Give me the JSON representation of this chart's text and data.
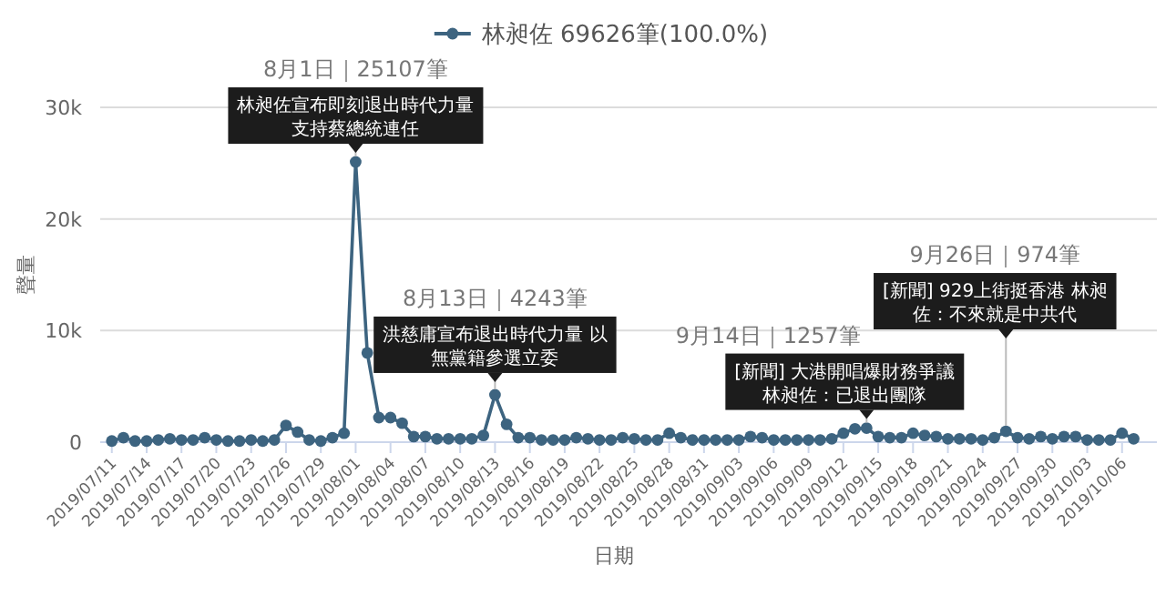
{
  "chart_data": {
    "type": "line",
    "xlabel": "日期",
    "ylabel": "聲量",
    "legend": "top",
    "grid": "y",
    "marker": "circle",
    "line_style": "solid",
    "xlim": [
      "2019-07-10",
      "2019-10-09"
    ],
    "ylim": [
      0,
      30000
    ],
    "yticks": [
      0,
      {
        "value": 10000,
        "label": "10k"
      },
      {
        "value": 20000,
        "label": "20k"
      },
      {
        "value": 30000,
        "label": "30k"
      }
    ],
    "xticks": [
      {
        "value": "2019-07-11",
        "label": "2019/07/11"
      },
      {
        "value": "2019-07-14",
        "label": "2019/07/14"
      },
      {
        "value": "2019-07-17",
        "label": "2019/07/17"
      },
      {
        "value": "2019-07-20",
        "label": "2019/07/20"
      },
      {
        "value": "2019-07-23",
        "label": "2019/07/23"
      },
      {
        "value": "2019-07-26",
        "label": "2019/07/26"
      },
      {
        "value": "2019-07-29",
        "label": "2019/07/29"
      },
      {
        "value": "2019-08-01",
        "label": "2019/08/01"
      },
      {
        "value": "2019-08-04",
        "label": "2019/08/04"
      },
      {
        "value": "2019-08-07",
        "label": "2019/08/07"
      },
      {
        "value": "2019-08-10",
        "label": "2019/08/10"
      },
      {
        "value": "2019-08-13",
        "label": "2019/08/13"
      },
      {
        "value": "2019-08-16",
        "label": "2019/08/16"
      },
      {
        "value": "2019-08-19",
        "label": "2019/08/19"
      },
      {
        "value": "2019-08-22",
        "label": "2019/08/22"
      },
      {
        "value": "2019-08-25",
        "label": "2019/08/25"
      },
      {
        "value": "2019-08-28",
        "label": "2019/08/28"
      },
      {
        "value": "2019-08-31",
        "label": "2019/08/31"
      },
      {
        "value": "2019-09-03",
        "label": "2019/09/03"
      },
      {
        "value": "2019-09-06",
        "label": "2019/09/06"
      },
      {
        "value": "2019-09-09",
        "label": "2019/09/09"
      },
      {
        "value": "2019-09-12",
        "label": "2019/09/12"
      },
      {
        "value": "2019-09-15",
        "label": "2019/09/15"
      },
      {
        "value": "2019-09-18",
        "label": "2019/09/18"
      },
      {
        "value": "2019-09-21",
        "label": "2019/09/21"
      },
      {
        "value": "2019-09-24",
        "label": "2019/09/24"
      },
      {
        "value": "2019-09-27",
        "label": "2019/09/27"
      },
      {
        "value": "2019-09-30",
        "label": "2019/09/30"
      },
      {
        "value": "2019-10-03",
        "label": "2019/10/03"
      },
      {
        "value": "2019-10-06",
        "label": "2019/10/06"
      }
    ],
    "annotations": [
      "8月1日｜25107筆",
      {
        "text": "林昶佐宣布即刻退出時代力量支持蔡總統連任",
        "x": "2019-08-01",
        "y": 25107
      },
      "8月13日｜4243筆",
      {
        "text": "洪慈庸宣布退出時代力量 以無黨籍參選立委",
        "x": "2019-08-13",
        "y": 4243
      },
      "9月14日｜1257筆",
      {
        "text": "[新聞] 大港開唱爆財務爭議林昶佐：已退出團隊",
        "x": "2019-09-14",
        "y": 1257
      },
      "9月26日｜974筆",
      {
        "text": "[新聞] 929上街挺香港 林昶佐：不來就是中共代",
        "x": "2019-09-26",
        "y": 974
      }
    ],
    "series": [
      {
        "name": "林昶佐 69626筆(100.0%)",
        "color": "#3d6480",
        "x": [
          "2019-07-11",
          "2019-07-12",
          "2019-07-13",
          "2019-07-14",
          "2019-07-15",
          "2019-07-16",
          "2019-07-17",
          "2019-07-18",
          "2019-07-19",
          "2019-07-20",
          "2019-07-21",
          "2019-07-22",
          "2019-07-23",
          "2019-07-24",
          "2019-07-25",
          "2019-07-26",
          "2019-07-27",
          "2019-07-28",
          "2019-07-29",
          "2019-07-30",
          "2019-07-31",
          "2019-08-01",
          "2019-08-02",
          "2019-08-03",
          "2019-08-04",
          "2019-08-05",
          "2019-08-06",
          "2019-08-07",
          "2019-08-08",
          "2019-08-09",
          "2019-08-10",
          "2019-08-11",
          "2019-08-12",
          "2019-08-13",
          "2019-08-14",
          "2019-08-15",
          "2019-08-16",
          "2019-08-17",
          "2019-08-18",
          "2019-08-19",
          "2019-08-20",
          "2019-08-21",
          "2019-08-22",
          "2019-08-23",
          "2019-08-24",
          "2019-08-25",
          "2019-08-26",
          "2019-08-27",
          "2019-08-28",
          "2019-08-29",
          "2019-08-30",
          "2019-08-31",
          "2019-09-01",
          "2019-09-02",
          "2019-09-03",
          "2019-09-04",
          "2019-09-05",
          "2019-09-06",
          "2019-09-07",
          "2019-09-08",
          "2019-09-09",
          "2019-09-10",
          "2019-09-11",
          "2019-09-12",
          "2019-09-13",
          "2019-09-14",
          "2019-09-15",
          "2019-09-16",
          "2019-09-17",
          "2019-09-18",
          "2019-09-19",
          "2019-09-20",
          "2019-09-21",
          "2019-09-22",
          "2019-09-23",
          "2019-09-24",
          "2019-09-25",
          "2019-09-26",
          "2019-09-27",
          "2019-09-28",
          "2019-09-29",
          "2019-09-30",
          "2019-10-01",
          "2019-10-02",
          "2019-10-03",
          "2019-10-04",
          "2019-10-05",
          "2019-10-06",
          "2019-10-07"
        ],
        "values": [
          100,
          400,
          100,
          100,
          200,
          300,
          200,
          200,
          400,
          200,
          100,
          100,
          200,
          100,
          200,
          1500,
          900,
          200,
          100,
          400,
          800,
          25107,
          8000,
          2200,
          2200,
          1700,
          500,
          500,
          300,
          300,
          300,
          300,
          600,
          4243,
          1600,
          400,
          400,
          200,
          200,
          200,
          400,
          300,
          200,
          200,
          400,
          300,
          200,
          200,
          800,
          400,
          200,
          200,
          200,
          200,
          200,
          500,
          400,
          200,
          200,
          200,
          200,
          200,
          300,
          800,
          1200,
          1257,
          500,
          400,
          400,
          800,
          600,
          500,
          300,
          300,
          300,
          200,
          400,
          974,
          400,
          300,
          500,
          300,
          500,
          500,
          200,
          200,
          200,
          800,
          300
        ]
      }
    ]
  }
}
